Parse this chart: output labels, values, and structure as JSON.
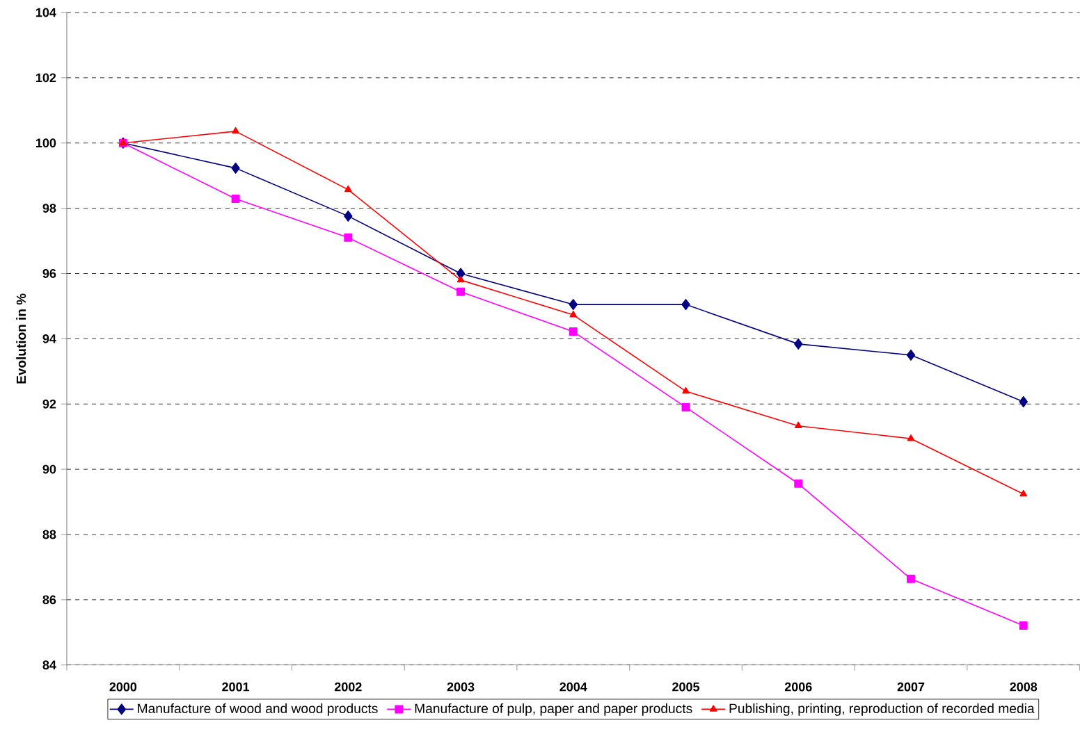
{
  "chart_data": {
    "type": "line",
    "ylabel": "Evolution in %",
    "categories": [
      "2000",
      "2001",
      "2002",
      "2003",
      "2004",
      "2005",
      "2006",
      "2007",
      "2008"
    ],
    "series": [
      {
        "name": "Manufacture of wood and wood products",
        "color": "#000080",
        "marker": "diamond",
        "values": [
          100,
          99.23,
          97.76,
          96.0,
          95.05,
          95.05,
          93.84,
          93.5,
          92.07
        ]
      },
      {
        "name": "Manufacture of pulp, paper and paper products",
        "color": "#ff00ff",
        "marker": "square",
        "values": [
          100,
          98.29,
          97.1,
          95.44,
          94.22,
          91.9,
          89.56,
          86.64,
          85.21
        ]
      },
      {
        "name": "Publishing, printing, reproduction of recorded media",
        "color": "#ff0000",
        "marker": "triangle",
        "values": [
          100,
          100.36,
          98.57,
          95.8,
          94.73,
          92.39,
          91.33,
          90.94,
          89.24
        ]
      }
    ],
    "ylim": [
      84,
      104
    ],
    "yticks": [
      84,
      86,
      88,
      90,
      92,
      94,
      96,
      98,
      100,
      102,
      104
    ],
    "grid": "y",
    "legend": "bottom",
    "line_style": "solid"
  }
}
